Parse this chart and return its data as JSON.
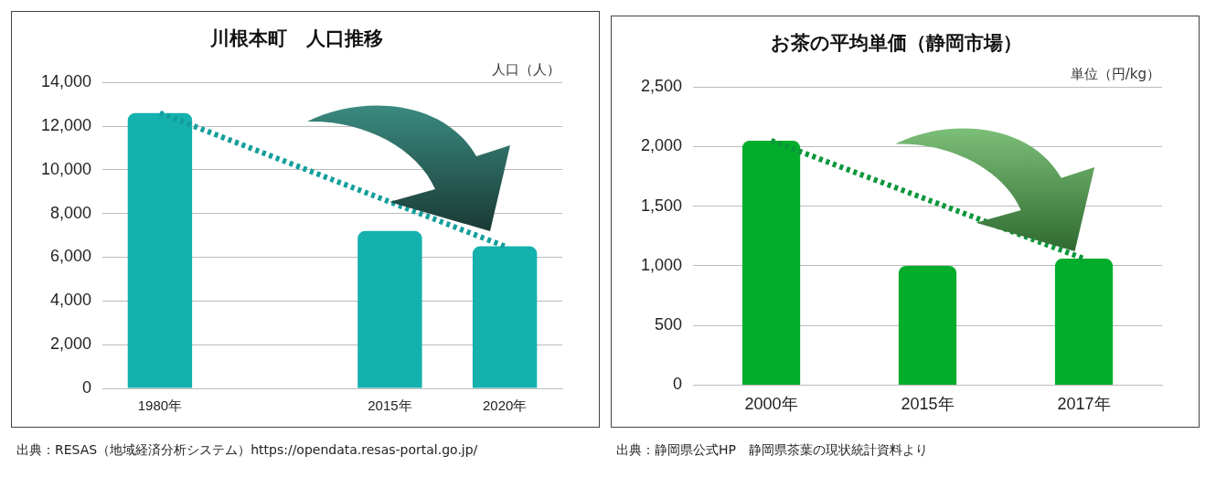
{
  "chart_data": [
    {
      "type": "bar",
      "title": "川根本町　人口推移",
      "ylabel": "人口（人）",
      "categories": [
        "1980年",
        null,
        "2015年",
        "2020年"
      ],
      "series": [
        {
          "color": "#15b1ae",
          "values": [
            12600,
            null,
            7200,
            6500
          ]
        },
        {
          "type": "line",
          "x": [
            "1980年",
            "2020年"
          ],
          "values": [
            12600,
            6500
          ],
          "color": "#129e9c",
          "line_style": "dotted"
        }
      ],
      "ylim": [
        0,
        14000
      ],
      "yticks": [
        {
          "value": 0,
          "label": "0"
        },
        {
          "value": 2000,
          "label": "2,000"
        },
        {
          "value": 4000,
          "label": "4,000"
        },
        {
          "value": 6000,
          "label": "6,000"
        },
        {
          "value": 8000,
          "label": "8,000"
        },
        {
          "value": 10000,
          "label": "10,000"
        },
        {
          "value": 12000,
          "label": "12,000"
        },
        {
          "value": 14000,
          "label": "14,000"
        }
      ],
      "grid": "y",
      "legend": false,
      "marker": "none",
      "annotations": [
        "出典：RESAS（地域経済分析システム）https://opendata.resas-portal.go.jp/"
      ]
    },
    {
      "type": "bar",
      "title": "お茶の平均単価（静岡市場）",
      "ylabel": "単位（円/kg）",
      "categories": [
        "2000年",
        "2015年",
        "2017年"
      ],
      "series": [
        {
          "color": "#03ad2c",
          "values": [
            2050,
            1000,
            1060
          ]
        },
        {
          "type": "line",
          "x": [
            "2000年",
            "2017年"
          ],
          "values": [
            2050,
            1060
          ],
          "color": "#0a963a",
          "line_style": "dotted"
        }
      ],
      "ylim": [
        0,
        2500
      ],
      "yticks": [
        {
          "value": 0,
          "label": "0"
        },
        {
          "value": 500,
          "label": "500"
        },
        {
          "value": 1000,
          "label": "1,000"
        },
        {
          "value": 1500,
          "label": "1,500"
        },
        {
          "value": 2000,
          "label": "2,000"
        },
        {
          "value": 2500,
          "label": "2,500"
        }
      ],
      "grid": "y",
      "legend": false,
      "marker": "none",
      "annotations": [
        "出典：静岡県公式HP　静岡県茶葉の現状統計資料より"
      ]
    }
  ]
}
